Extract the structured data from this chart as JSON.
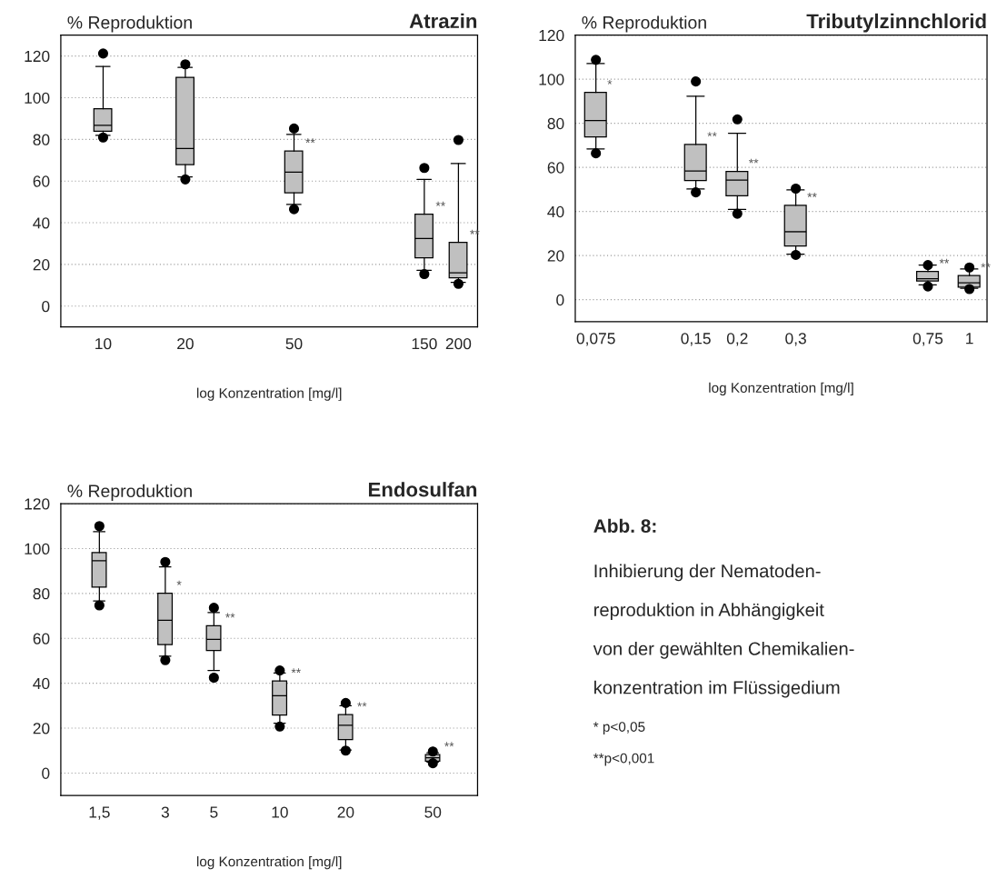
{
  "chart_data": [
    {
      "type": "box",
      "title": "Atrazin",
      "ylabel": "% Reproduktion",
      "xlabel": "log Konzentration [mg/l]",
      "log": "x",
      "x": [
        10,
        20,
        50,
        150,
        200
      ],
      "xlim": [
        7,
        235
      ],
      "xticks": [
        10,
        20,
        50,
        150,
        200
      ],
      "ylim": [
        -10,
        130
      ],
      "yticks": [
        0,
        20,
        40,
        60,
        80,
        100,
        120
      ],
      "grid": "y",
      "color": "#c0c0c0",
      "boxes": [
        {
          "low": 81.9,
          "q1": 83.9,
          "median": 86.7,
          "q3": 94.7,
          "high": 115,
          "outliers": [
            121.2,
            80.9
          ]
        },
        {
          "low": 62,
          "q1": 67.9,
          "median": 75.6,
          "q3": 109.8,
          "high": 114.5,
          "outliers": [
            116,
            60.8
          ]
        },
        {
          "low": 48.8,
          "q1": 54.4,
          "median": 64.3,
          "q3": 74.4,
          "high": 82.4,
          "outliers": [
            85.2,
            46.5
          ]
        },
        {
          "low": 17.2,
          "q1": 23.2,
          "median": 32.4,
          "q3": 44.1,
          "high": 60.8,
          "outliers": [
            66.3,
            15.4
          ]
        },
        {
          "low": 11.4,
          "q1": 13.6,
          "median": 16,
          "q3": 30.6,
          "high": 68.4,
          "outliers": [
            79.7,
            10.7
          ]
        }
      ],
      "annotations": [
        {
          "text": "**",
          "x": 50,
          "y": 74.4
        },
        {
          "text": "**",
          "x": 150,
          "y": 44.1
        },
        {
          "text": "**",
          "x": 200,
          "y": 30.6
        }
      ]
    },
    {
      "type": "box",
      "title": "Tributylzinnchlorid",
      "ylabel": "% Reproduktion",
      "xlabel": "log Konzentration [mg/l]",
      "log": "x",
      "x": [
        0.075,
        0.15,
        0.2,
        0.3,
        0.75,
        1
      ],
      "xlim": [
        0.065,
        1.13
      ],
      "xticks": [
        {
          "value": 0.075,
          "label": "0,075"
        },
        {
          "value": 0.15,
          "label": "0,15"
        },
        {
          "value": 0.2,
          "label": "0,2"
        },
        {
          "value": 0.3,
          "label": "0,3"
        },
        {
          "value": 0.75,
          "label": "0,75"
        },
        1
      ],
      "ylim": [
        -10,
        120
      ],
      "yticks": [
        0,
        20,
        40,
        60,
        80,
        100,
        120
      ],
      "grid": "y",
      "color": "#c0c0c0",
      "boxes": [
        {
          "low": 68.4,
          "q1": 73.8,
          "median": 81.3,
          "q3": 94,
          "high": 107.1,
          "outliers": [
            108.8,
            66.4
          ]
        },
        {
          "low": 50.2,
          "q1": 54,
          "median": 58.4,
          "q3": 70.4,
          "high": 92.3,
          "outliers": [
            99,
            48.7
          ]
        },
        {
          "low": 40.9,
          "q1": 47.1,
          "median": 54.2,
          "q3": 58.2,
          "high": 75.5,
          "outliers": [
            81.8,
            39
          ]
        },
        {
          "low": 20.6,
          "q1": 24.4,
          "median": 30.8,
          "q3": 42.8,
          "high": 49.8,
          "outliers": [
            50.4,
            20.3
          ]
        },
        {
          "low": 6.7,
          "q1": 8.5,
          "median": 9.5,
          "q3": 12.8,
          "high": 15.7,
          "outliers": [
            15.7,
            6
          ]
        },
        {
          "low": 5.2,
          "q1": 5.7,
          "median": 7.7,
          "q3": 10.9,
          "high": 13.9,
          "outliers": [
            14.6,
            4.8
          ]
        }
      ],
      "annotations": [
        {
          "text": "*",
          "x": 0.075,
          "y": 94
        },
        {
          "text": "**",
          "x": 0.15,
          "y": 70.4
        },
        {
          "text": "**",
          "x": 0.2,
          "y": 58.2
        },
        {
          "text": "**",
          "x": 0.3,
          "y": 42.8
        },
        {
          "text": "**",
          "x": 0.75,
          "y": 12.8
        },
        {
          "text": "**",
          "x": 1,
          "y": 10.9
        }
      ]
    },
    {
      "type": "box",
      "title": "Endosulfan",
      "ylabel": "% Reproduktion",
      "xlabel": "log Konzentration [mg/l]",
      "log": "x",
      "x": [
        1.5,
        3,
        5,
        10,
        20,
        50
      ],
      "xlim": [
        1,
        80
      ],
      "xticks": [
        {
          "value": 1.5,
          "label": "1,5"
        },
        3,
        5,
        10,
        20,
        50
      ],
      "ylim": [
        -10,
        120
      ],
      "yticks": [
        0,
        20,
        40,
        60,
        80,
        100,
        120
      ],
      "grid": "y",
      "color": "#c0c0c0",
      "boxes": [
        {
          "low": 76.7,
          "q1": 82.8,
          "median": 94.6,
          "q3": 98.2,
          "high": 107.5,
          "outliers": [
            110,
            74.7
          ]
        },
        {
          "low": 52.1,
          "q1": 57.2,
          "median": 68.1,
          "q3": 80.1,
          "high": 91.8,
          "outliers": [
            94,
            50.3
          ]
        },
        {
          "low": 45.7,
          "q1": 54.6,
          "median": 59.6,
          "q3": 65.6,
          "high": 71.5,
          "outliers": [
            73.6,
            42.5
          ]
        },
        {
          "low": 22.2,
          "q1": 25.8,
          "median": 34.4,
          "q3": 41,
          "high": 44.6,
          "outliers": [
            45.7,
            20.7
          ]
        },
        {
          "low": 10.3,
          "q1": 14.9,
          "median": 21.3,
          "q3": 26,
          "high": 30,
          "outliers": [
            31.2,
            10
          ]
        },
        {
          "low": 4.9,
          "q1": 5.3,
          "median": 6.8,
          "q3": 8.2,
          "high": 9,
          "outliers": [
            9.6,
            4.4
          ]
        }
      ],
      "annotations": [
        {
          "text": "*",
          "x": 3,
          "y": 80.1
        },
        {
          "text": "**",
          "x": 5,
          "y": 65.6
        },
        {
          "text": "**",
          "x": 10,
          "y": 41
        },
        {
          "text": "**",
          "x": 20,
          "y": 26
        },
        {
          "text": "**",
          "x": 50,
          "y": 8.2
        }
      ]
    },
    {
      "type": "other",
      "title": "Abb. 8:",
      "annotations": [
        "Inhibierung der Nematoden-",
        "reproduktion in Abhängigkeit",
        "von der gewählten Chemikalien-",
        "konzentration im Flüssigedium",
        "* p<0,05",
        "**p<0,001"
      ]
    }
  ]
}
